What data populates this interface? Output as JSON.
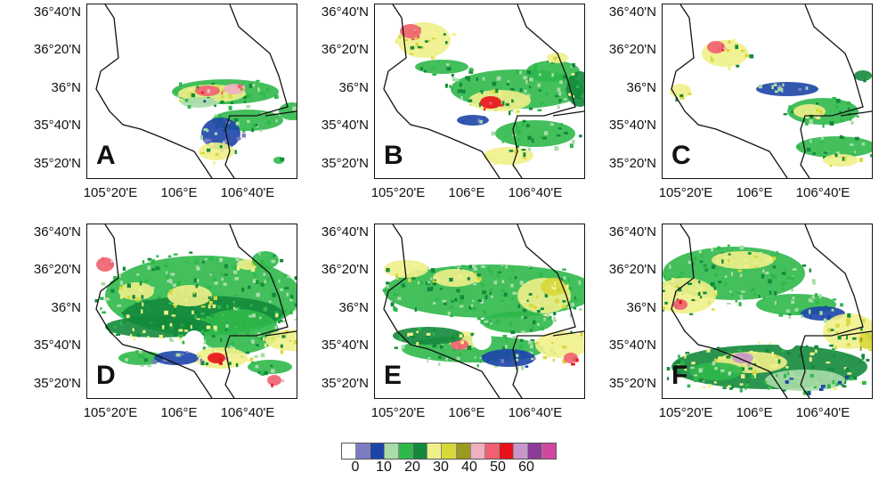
{
  "panels": [
    {
      "letter": "A"
    },
    {
      "letter": "B"
    },
    {
      "letter": "C"
    },
    {
      "letter": "D"
    },
    {
      "letter": "E"
    },
    {
      "letter": "F"
    }
  ],
  "lat_labels": [
    "36°40'N",
    "36°20'N",
    "36°N",
    "35°40'N",
    "35°20'N"
  ],
  "lon_labels": [
    "105°20'E",
    "106°E",
    "106°40'E"
  ],
  "colorbar": {
    "colors": [
      "#ffffff",
      "#7c7cc4",
      "#1d45a8",
      "#a8dca8",
      "#2fb84a",
      "#138a3b",
      "#f0f08a",
      "#d8d83c",
      "#9a9a1e",
      "#f0b0c0",
      "#f06070",
      "#e8101a",
      "#c896cc",
      "#8a3c96",
      "#d048a0"
    ],
    "labels": [
      "0",
      "10",
      "20",
      "30",
      "40",
      "50",
      "60"
    ]
  }
}
